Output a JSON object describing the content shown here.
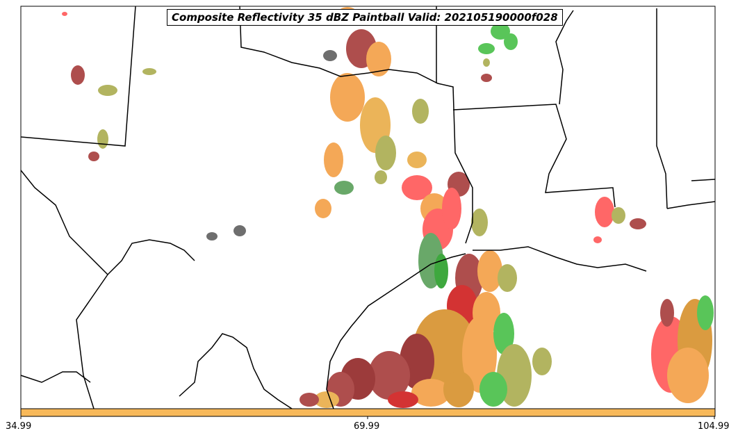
{
  "map": {
    "title": "Composite Reflectivity 35 dBZ Paintball Valid: 202105190000f028",
    "colorbar": {
      "fill": "#f8b95a",
      "ticks": [
        "34.99",
        "69.99",
        "104.99"
      ]
    },
    "member_colors": [
      "#ff4d4d",
      "#f39a3a",
      "#a0302f",
      "#8b1a1a",
      "#e8a83d",
      "#a5a845",
      "#3dbb3d",
      "#1d9a1d",
      "#555555",
      "#4f9a4f",
      "#d48a1f",
      "#cc1010"
    ],
    "background": "#ffffff",
    "border_color": "#000000"
  }
}
